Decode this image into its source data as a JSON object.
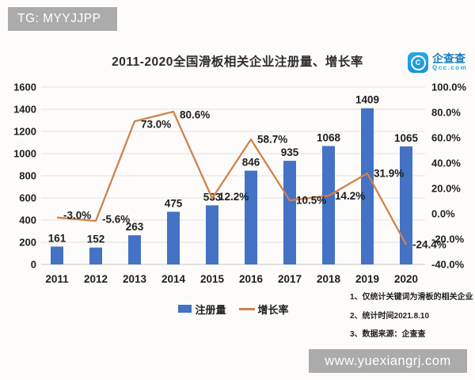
{
  "watermarks": {
    "top_left": "TG: MYYJJPP",
    "bottom_right": "www.yuexiangrj.com"
  },
  "logo": {
    "name": "企查查",
    "domain": "Qcc.com"
  },
  "chart_data": {
    "type": "bar+line",
    "title": "2011-2020全国滑板相关企业注册量、增长率",
    "categories": [
      "2011",
      "2012",
      "2013",
      "2014",
      "2015",
      "2016",
      "2017",
      "2018",
      "2019",
      "2020"
    ],
    "series": [
      {
        "name": "注册量",
        "type": "bar",
        "axis": "left",
        "values": [
          161,
          152,
          263,
          475,
          533,
          846,
          935,
          1068,
          1409,
          1065
        ]
      },
      {
        "name": "增长率",
        "type": "line",
        "axis": "right",
        "values": [
          -3.0,
          -5.6,
          73.0,
          80.6,
          12.2,
          58.7,
          10.5,
          14.2,
          31.9,
          -24.4
        ],
        "labels": [
          "-3.0%",
          "-5.6%",
          "73.0%",
          "80.6%",
          "12.2%",
          "58.7%",
          "10.5%",
          "14.2%",
          "31.9%",
          "-24.4%"
        ]
      }
    ],
    "left_axis": {
      "min": 0,
      "max": 1600,
      "step": 200,
      "ticks": [
        "0",
        "200",
        "400",
        "600",
        "800",
        "1000",
        "1200",
        "1400",
        "1600"
      ]
    },
    "right_axis": {
      "min": -40,
      "max": 100,
      "step": 20,
      "ticks": [
        "-40.0%",
        "-20.0%",
        "0.0%",
        "20.0%",
        "40.0%",
        "60.0%",
        "80.0%",
        "100.0%"
      ]
    },
    "grid": true,
    "legend": [
      "注册量",
      "增长率"
    ],
    "legend_position": "bottom-center"
  },
  "notes": [
    "1、仅统计关键词为滑板的相关企业",
    "2、统计时间2021.8.10",
    "3、数据来源：企查查"
  ],
  "colors": {
    "bar": "#4472C4",
    "line": "#D0824C",
    "grid": "#E4E2DF",
    "axis_line": "#C8C6C3",
    "badge_bg": "#ABABAB",
    "logo_blue": "#29A7E8",
    "logo_text": "#1B7EC2"
  }
}
